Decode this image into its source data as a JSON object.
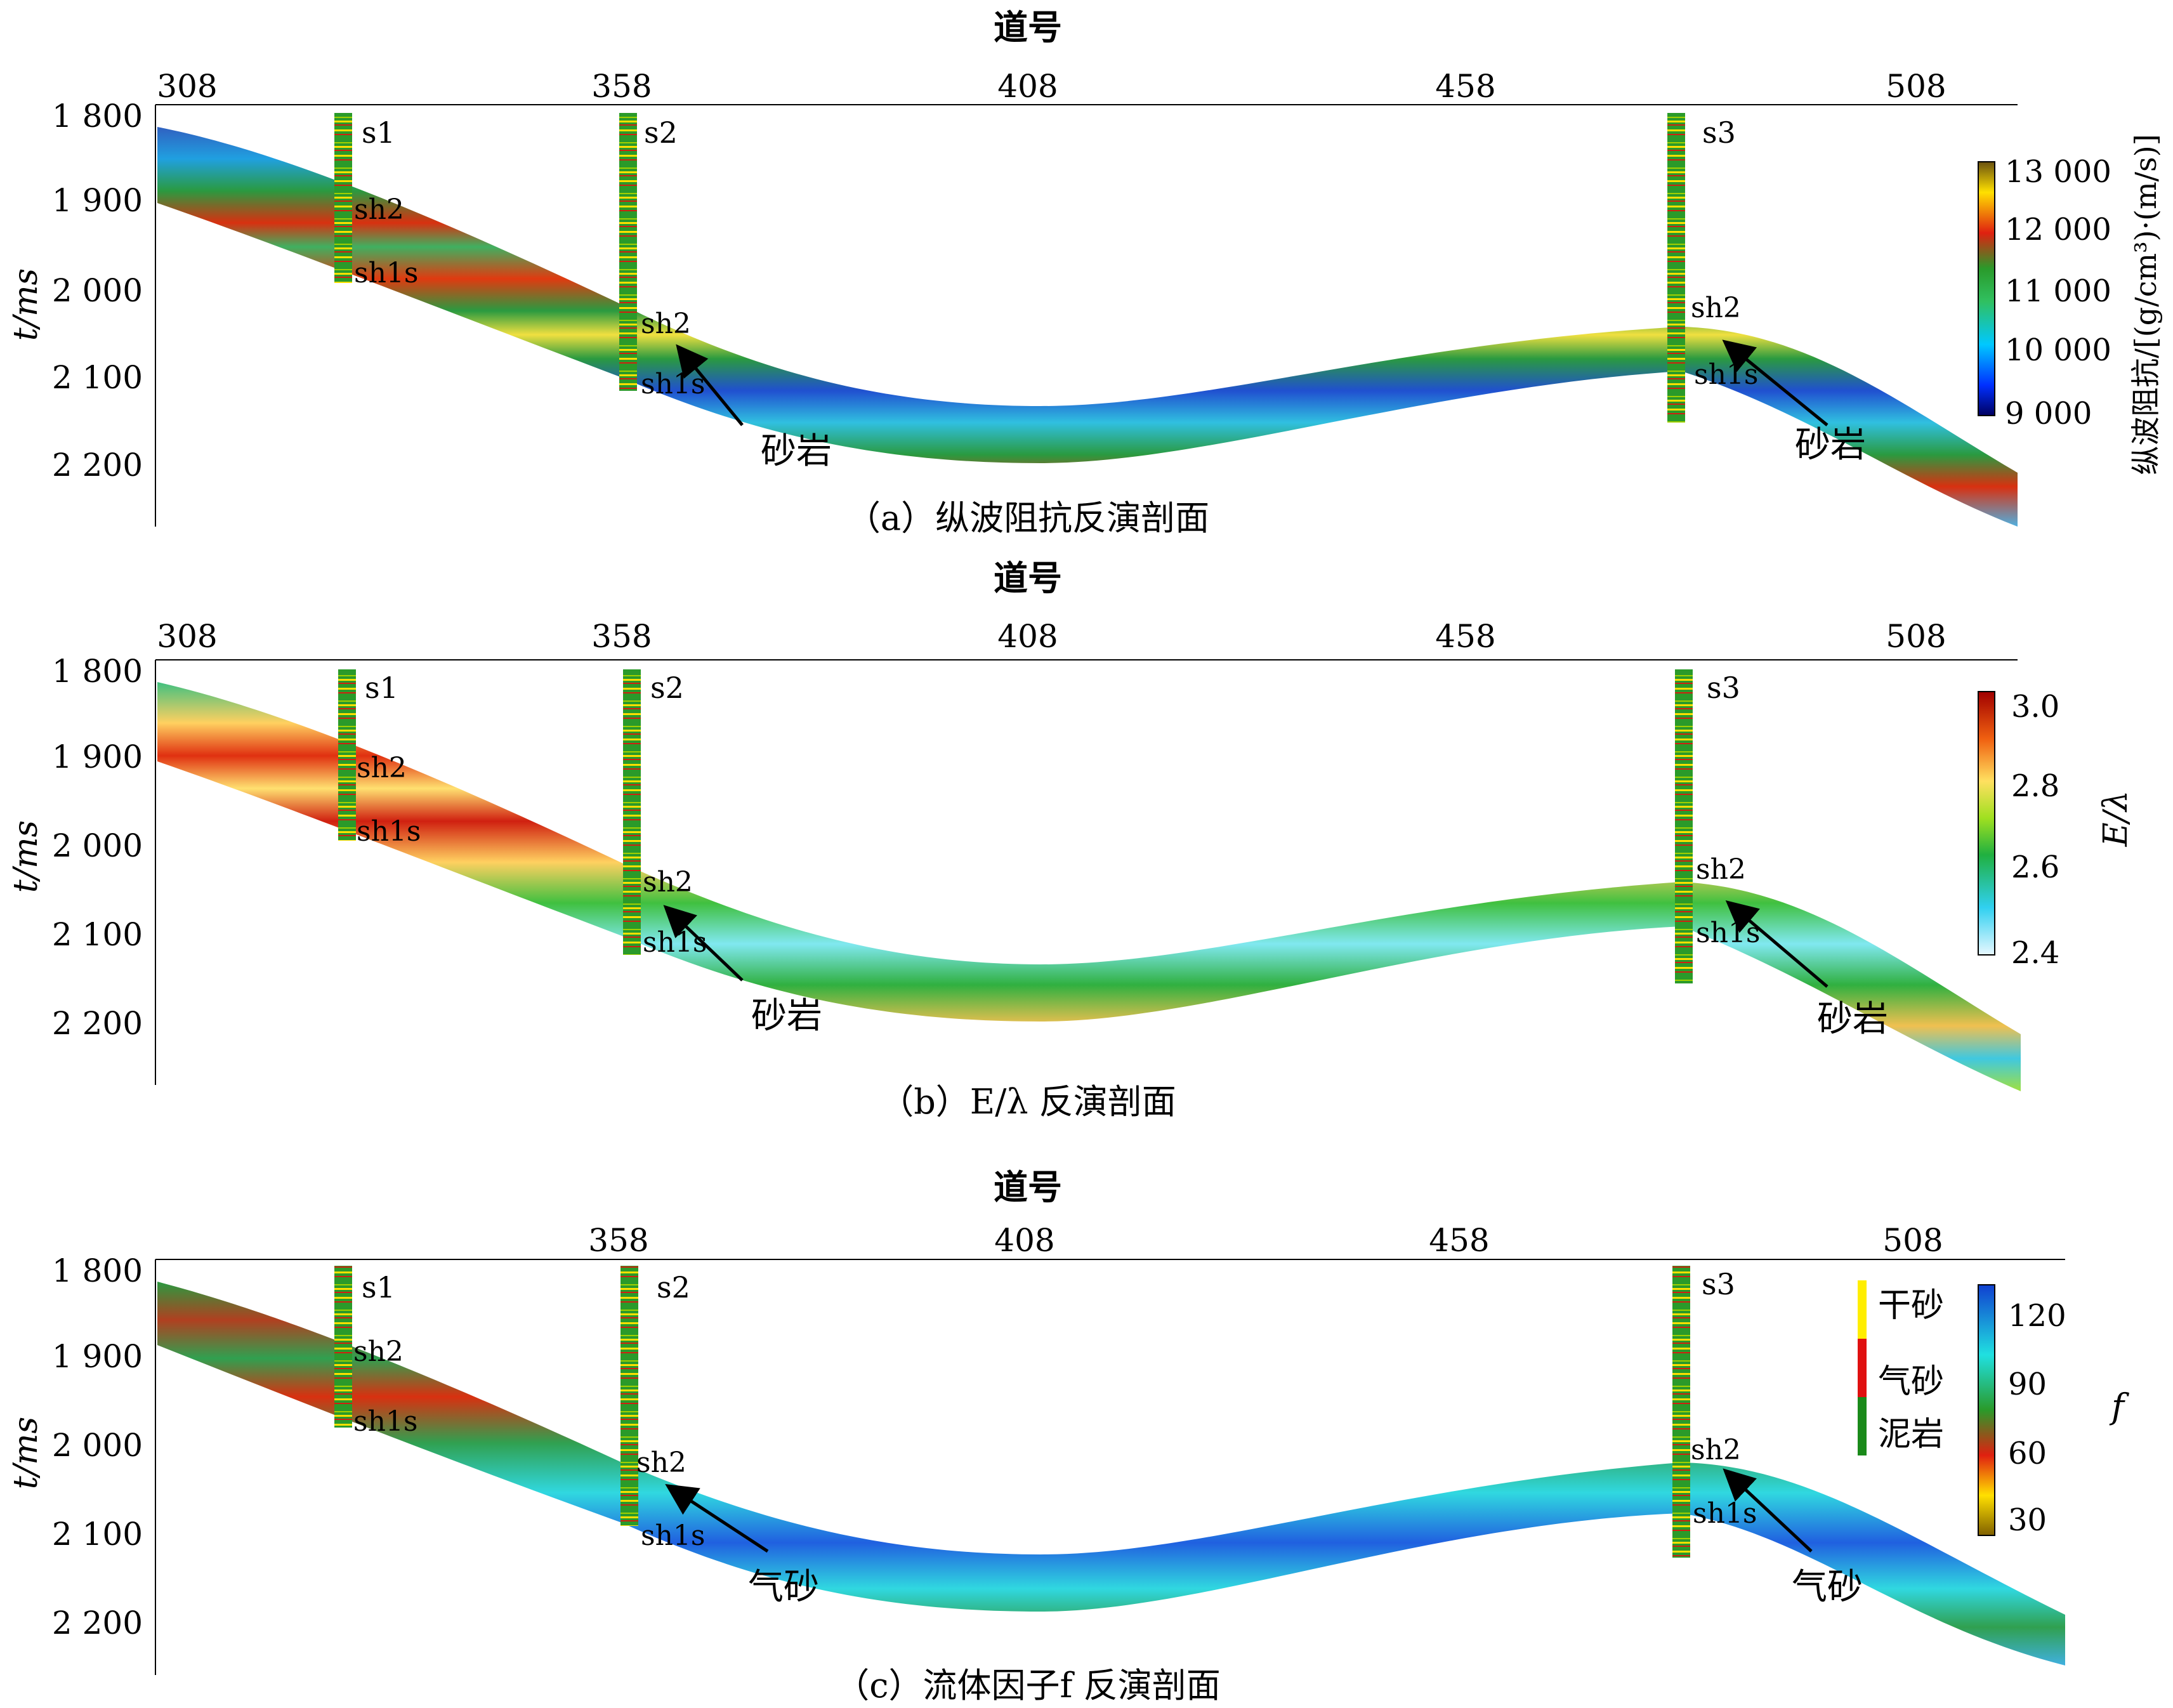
{
  "axis_labels": {
    "trace_header": "道号",
    "time": "t/ms"
  },
  "panels": [
    {
      "id": "a",
      "caption": "（a）纵波阻抗反演剖面",
      "x_ticks": [
        "308",
        "358",
        "408",
        "458",
        "508"
      ],
      "y_ticks": [
        "1 800",
        "1 900",
        "2 000",
        "2 100",
        "2 200"
      ],
      "wells": [
        "s1",
        "s2",
        "s3"
      ],
      "horizon_labels": [
        "sh2",
        "sh1s"
      ],
      "arrow_label": "砂岩",
      "colorbar": {
        "title": "纵波阻抗/[(g/cm³)·(m/s)]",
        "ticks": [
          "13 000",
          "12 000",
          "11 000",
          "10 000",
          "9 000"
        ]
      }
    },
    {
      "id": "b",
      "caption": "（b）E/λ 反演剖面",
      "x_ticks": [
        "308",
        "358",
        "408",
        "458",
        "508"
      ],
      "y_ticks": [
        "1 800",
        "1 900",
        "2 000",
        "2 100",
        "2 200"
      ],
      "wells": [
        "s1",
        "s2",
        "s3"
      ],
      "horizon_labels": [
        "sh2",
        "sh1s"
      ],
      "arrow_label": "砂岩",
      "colorbar": {
        "title": "E/λ",
        "ticks": [
          "3.0",
          "2.8",
          "2.6",
          "2.4"
        ]
      }
    },
    {
      "id": "c",
      "caption": "（c）流体因子f 反演剖面",
      "x_ticks": [
        "358",
        "408",
        "458",
        "508"
      ],
      "y_ticks": [
        "1 800",
        "1 900",
        "2 000",
        "2 100",
        "2 200"
      ],
      "wells": [
        "s1",
        "s2",
        "s3"
      ],
      "horizon_labels": [
        "sh2",
        "sh1s"
      ],
      "arrow_label": "气砂",
      "colorbar": {
        "title": "f",
        "ticks": [
          "120",
          "90",
          "60",
          "30"
        ]
      },
      "lithology_legend": [
        "干砂",
        "气砂",
        "泥岩"
      ]
    }
  ]
}
